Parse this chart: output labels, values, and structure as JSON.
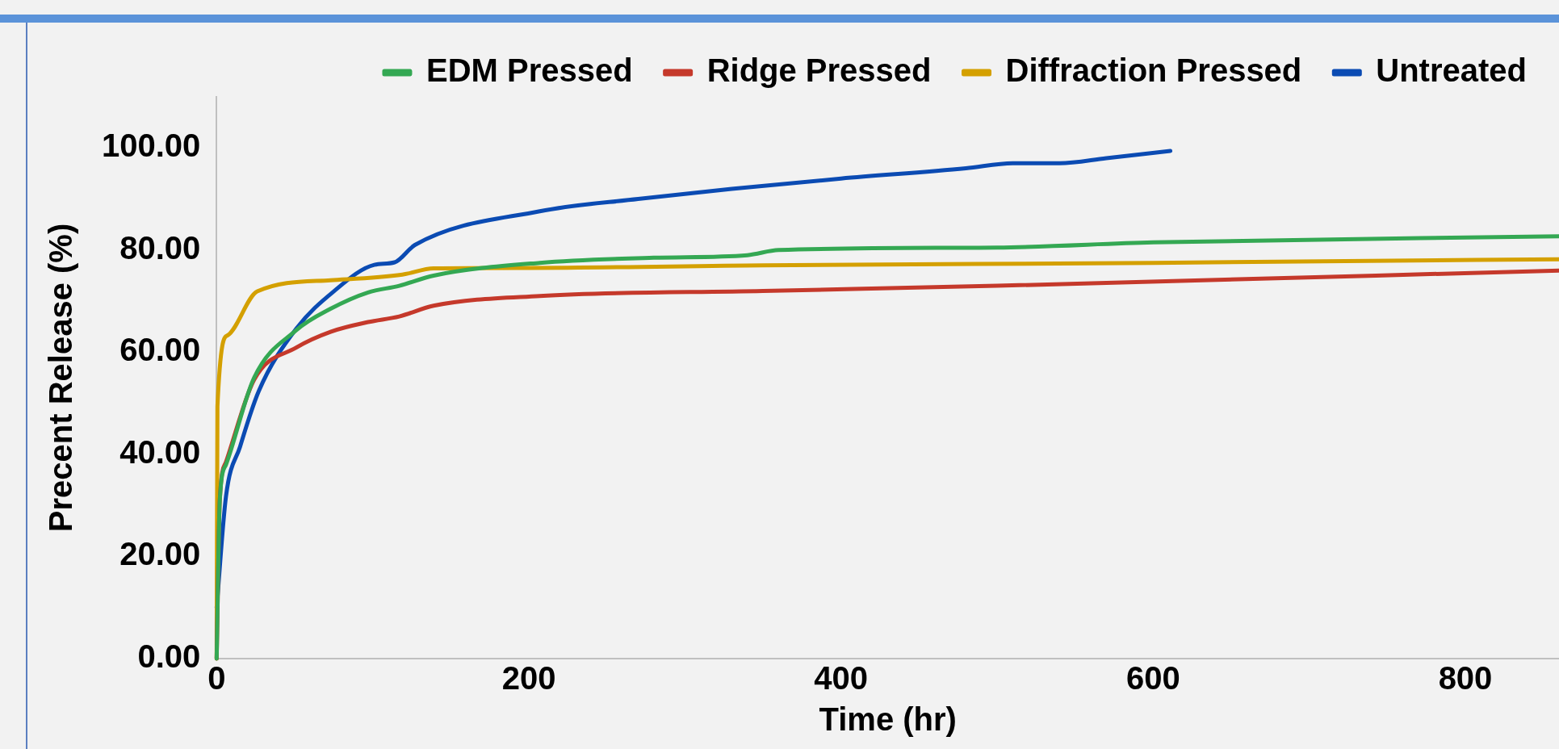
{
  "chart_data": {
    "type": "line",
    "xlabel": "Time (hr)",
    "ylabel": "Precent Release (%)",
    "xlim": [
      0,
      860
    ],
    "xticks": [
      0,
      200,
      400,
      600,
      800
    ],
    "ylim": [
      0,
      110
    ],
    "yticks": [
      {
        "value": 0,
        "label": "0.00"
      },
      {
        "value": 20,
        "label": "20.00"
      },
      {
        "value": 40,
        "label": "40.00"
      },
      {
        "value": 60,
        "label": "60.00"
      },
      {
        "value": 80,
        "label": "80.00"
      },
      {
        "value": 100,
        "label": "100.00"
      }
    ],
    "grid": false,
    "legend": "top",
    "marker": "none",
    "line_style": "solid",
    "series": [
      {
        "name": "EDM Pressed",
        "color": "#34a853",
        "x": [
          0,
          2,
          6,
          24,
          51,
          73,
          97,
          117,
          139,
          207,
          280,
          340,
          360,
          500,
          600,
          860
        ],
        "values": [
          0,
          31,
          38,
          55,
          64.3,
          68.5,
          71.7,
          73,
          75,
          77.5,
          78.5,
          79,
          80,
          80.5,
          81.5,
          82.7
        ]
      },
      {
        "name": "Ridge Pressed",
        "color": "#c5392b",
        "x": [
          0,
          2,
          6,
          24,
          51,
          73,
          97,
          117,
          139,
          207,
          350,
          500,
          860
        ],
        "values": [
          0,
          31,
          38.5,
          54.6,
          60.9,
          64,
          65.9,
          67,
          69.1,
          71,
          72,
          73,
          76
        ]
      },
      {
        "name": "Diffraction Pressed",
        "color": "#d4a000",
        "x": [
          0,
          0.5,
          7,
          26,
          73,
          119,
          139,
          200,
          350,
          600,
          860
        ],
        "values": [
          0,
          49.4,
          63.3,
          71.9,
          74.1,
          75.2,
          76.4,
          76.5,
          77,
          77.5,
          78.2
        ]
      },
      {
        "name": "Untreated",
        "color": "#0b4bb3",
        "x": [
          0,
          6,
          15,
          27,
          51,
          75,
          101,
          114,
          127,
          207,
          270,
          330,
          400,
          480,
          510,
          540,
          570,
          611
        ],
        "values": [
          10,
          31.8,
          41.5,
          52.4,
          64.6,
          71.9,
          77.1,
          77.6,
          81,
          87.6,
          90,
          92,
          94,
          96,
          97,
          97,
          98,
          99.4
        ]
      }
    ]
  }
}
